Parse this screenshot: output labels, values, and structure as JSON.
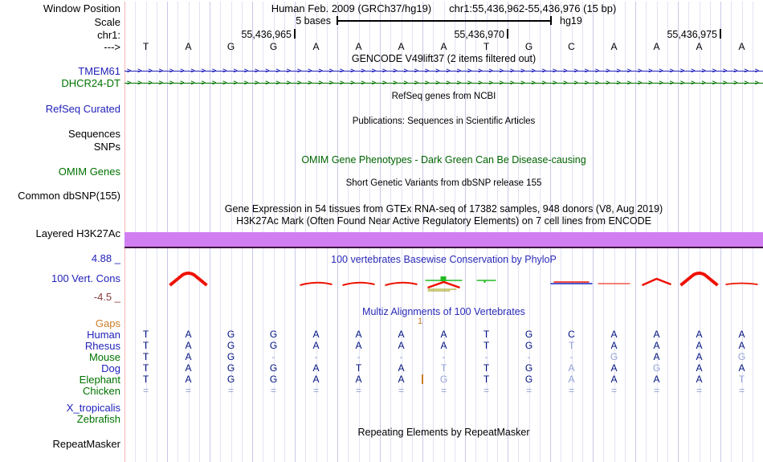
{
  "window": {
    "assembly_title": "Human Feb. 2009 (GRCh37/hg19)",
    "position_title": "chr1:55,436,962-55,436,976 (15 bp)"
  },
  "labels": {
    "window_position": "Window Position",
    "scale": "Scale",
    "chrom": "chr1:",
    "strand": "--->",
    "refseq_curated": "RefSeq Curated",
    "sequences": "Sequences",
    "snps": "SNPs",
    "omim_genes": "OMIM Genes",
    "common_dbsnp": "Common dbSNP(155)",
    "layered_h3k27ac": "Layered H3K27Ac",
    "cons_max": "4.88 _",
    "cons_track": "100 Vert. Cons",
    "cons_min": "-4.5 _",
    "repeatmasker": "RepeatMasker"
  },
  "scale_bar": {
    "label": "5 bases",
    "assembly": "hg19"
  },
  "ruler": {
    "ticks": [
      {
        "label": "55,436,965",
        "after_base": 4
      },
      {
        "label": "55,436,970",
        "after_base": 9
      },
      {
        "label": "55,436,975",
        "after_base": 14
      }
    ],
    "bases": [
      "T",
      "A",
      "G",
      "G",
      "A",
      "A",
      "A",
      "A",
      "T",
      "G",
      "C",
      "A",
      "A",
      "A",
      "A"
    ]
  },
  "gencode": {
    "title": "GENCODE V49lift37 (2 items filtered out)",
    "arrow_glyph": ">",
    "genes": [
      {
        "name": "TMEM61",
        "color": "blue"
      },
      {
        "name": "DHCR24-DT",
        "color": "green"
      }
    ]
  },
  "messages": {
    "refseq": "RefSeq genes from NCBI",
    "publications": "Publications: Sequences in Scientific Articles",
    "omim": "OMIM Gene Phenotypes - Dark Green Can Be Disease-causing",
    "dbsnp": "Short Genetic Variants from dbSNP release 155",
    "gtex": "Gene Expression in 54 tissues from GTEx RNA-seq of 17382 samples, 948 donors (V8, Aug 2019)",
    "h3k27ac": "H3K27Ac Mark (Often Found Near Active Regulatory Elements) on 7 cell lines from ENCODE"
  },
  "conservation": {
    "title": "100 vertebrates Basewise Conservation by PhyloP",
    "peaks": [
      {
        "col": 2,
        "kind": "tall"
      },
      {
        "col": 5,
        "kind": "bump"
      },
      {
        "col": 6,
        "kind": "bump"
      },
      {
        "col": 7,
        "kind": "bump"
      },
      {
        "col": 8,
        "kind": "cluster"
      },
      {
        "col": 9,
        "kind": "green-dash"
      },
      {
        "col": 11,
        "kind": "blue-flat"
      },
      {
        "col": 12,
        "kind": "flat"
      },
      {
        "col": 13,
        "kind": "small-peak"
      },
      {
        "col": 14,
        "kind": "tall"
      },
      {
        "col": 15,
        "kind": "flat-bump"
      }
    ]
  },
  "multiz": {
    "title": "Multiz Alignments of 100 Vertebrates",
    "gaps": {
      "label": "Gaps",
      "marker": "1"
    },
    "species": [
      {
        "name": "Human",
        "color": "blue",
        "cells": [
          "T",
          "A",
          "G",
          "G",
          "A",
          "A",
          "A",
          "A",
          "T",
          "G",
          "C",
          "A",
          "A",
          "A",
          "A"
        ]
      },
      {
        "name": "Rhesus",
        "color": "blue",
        "cells": [
          "T",
          "A",
          "G",
          "G",
          "A",
          "A",
          "A",
          "A",
          "T",
          "G",
          "~T",
          "A",
          "A",
          "A",
          "A"
        ]
      },
      {
        "name": "Mouse",
        "color": "green",
        "cells": [
          "T",
          "A",
          "G",
          "~-",
          "~-",
          "~-",
          "~-",
          "~-",
          "~-",
          "~-",
          "~-",
          "~G",
          "A",
          "A",
          "~G"
        ]
      },
      {
        "name": "Dog",
        "color": "blue",
        "cells": [
          "T",
          "A",
          "G",
          "G",
          "A",
          "T",
          "A",
          "~T",
          "T",
          "G",
          "~A",
          "A",
          "~G",
          "A",
          "A"
        ]
      },
      {
        "name": "Elephant",
        "color": "green",
        "cells": [
          "T",
          "A",
          "G",
          "G",
          "A",
          "A",
          "A",
          "~G",
          "T",
          "G",
          "~A",
          "A",
          "A",
          "A",
          "~T"
        ],
        "insert_after": 7
      },
      {
        "name": "Chicken",
        "color": "green",
        "cells": [
          "~=",
          "~=",
          "~=",
          "~=",
          "~=",
          "~=",
          "~=",
          "~=",
          "~=",
          "~=",
          "~=",
          "~=",
          "~=",
          "~=",
          "~="
        ]
      },
      {
        "name": "X_tropicalis",
        "color": "blue",
        "cells": [
          "",
          "",
          "",
          "",
          "",
          "",
          "",
          "",
          "",
          "",
          "",
          "",
          "",
          "",
          ""
        ]
      },
      {
        "name": "Zebrafish",
        "color": "green",
        "cells": [
          "",
          "",
          "",
          "",
          "",
          "",
          "",
          "",
          "",
          "",
          "",
          "",
          "",
          "",
          ""
        ]
      }
    ]
  },
  "repeats": {
    "title": "Repeating Elements by RepeatMasker"
  },
  "colors": {
    "track_blue": "#2222bb",
    "track_green": "#007200",
    "gaps_orange": "#cc7b29",
    "maroon": "#8b3a3a",
    "title_blue": "#2a2ab8",
    "omim_green": "#006400",
    "base_dark": "#00127d",
    "base_light": "#93a1d4",
    "cons_red": "#ee1100",
    "cons_green": "#22bb22",
    "cons_olive": "#999900",
    "cons_blue": "#3344cc",
    "h3k27ac_purple": "#d07ef2"
  }
}
